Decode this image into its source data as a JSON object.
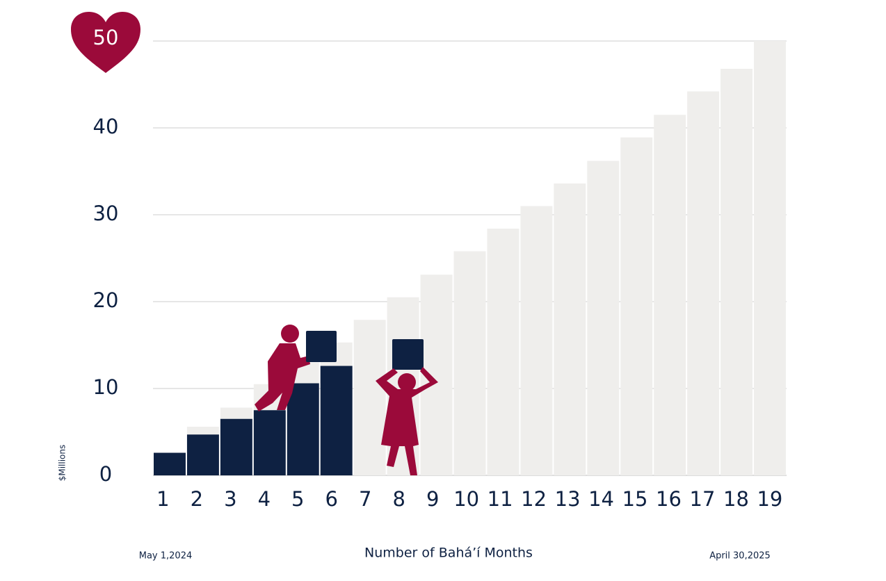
{
  "chart_data": {
    "type": "bar",
    "heart_label": "50",
    "ylabel": "$Millions",
    "xlabel": "Number of Bahá’í Months",
    "start_label": "May 1,2024",
    "end_label": "April 30,2025",
    "categories": [
      "1",
      "2",
      "3",
      "4",
      "5",
      "6",
      "7",
      "8",
      "9",
      "10",
      "11",
      "12",
      "13",
      "14",
      "15",
      "16",
      "17",
      "18",
      "19"
    ],
    "series": [
      {
        "color": "#efeeec",
        "values": [
          2.6,
          5.6,
          7.8,
          10.5,
          13,
          15.3,
          17.9,
          20.5,
          23.1,
          25.8,
          28.4,
          31.0,
          33.6,
          36.2,
          38.9,
          41.5,
          44.2,
          46.8,
          50
        ]
      },
      {
        "color": "#0e2142",
        "values": [
          2.6,
          4.7,
          6.5,
          7.5,
          10.6,
          12.6,
          null,
          null,
          null,
          null,
          null,
          null,
          null,
          null,
          null,
          null,
          null,
          null,
          null
        ]
      }
    ],
    "ylim": [
      0,
      50
    ],
    "yticks": [
      0,
      10,
      20,
      30,
      40,
      50
    ],
    "grid": true
  }
}
